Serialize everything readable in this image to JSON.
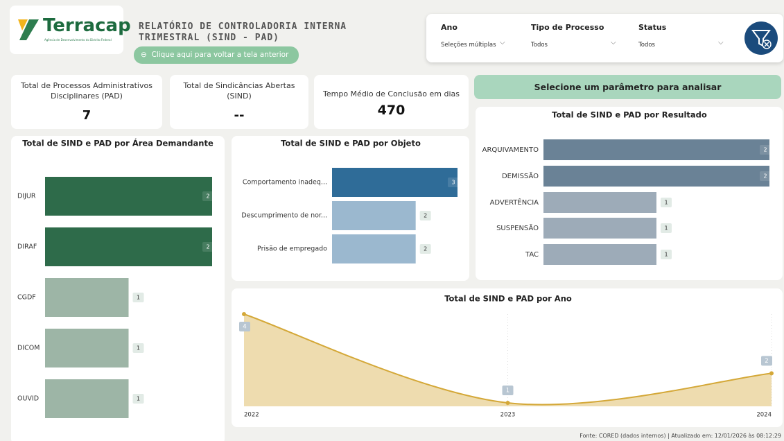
{
  "header": {
    "logo": "Terracap",
    "logo_subtitle": "Agência de Desenvolvimento do Distrito Federal",
    "title_lines": [
      "RELATÓRIO DE CONTROLADORIA INTERNA",
      "TRIMESTRAL (SIND - PAD)"
    ],
    "back_button": "Clique aqui para voltar a tela anterior"
  },
  "filters": [
    {
      "label": "Ano",
      "value": "Seleções múltiplas"
    },
    {
      "label": "Tipo de Processo",
      "value": "Todos"
    },
    {
      "label": "Status",
      "value": "Todos"
    }
  ],
  "kpis": [
    {
      "label": "Total de Processos Administrativos Disciplinares (PAD)",
      "value": 7
    },
    {
      "label": "Total de Sindicâncias Abertas (SIND)",
      "value": "--"
    },
    {
      "label": "Tempo Médio de Conclusão em dias",
      "value": 470
    }
  ],
  "param_button": "Selecione um parâmetro para analisar",
  "footer": "Fonte: CORED (dados internos) | Atualizado em: 12/01/2026 às 08:12:29",
  "chart_data": [
    {
      "type": "hbar",
      "title": "Total de SIND e PAD por Área Demandante",
      "categories": [
        "DIJUR",
        "DIRAF",
        "CGDF",
        "DICOM",
        "OUVID"
      ],
      "values": [
        2,
        2,
        1,
        1,
        1
      ],
      "colors": [
        "#2e6b4a",
        "#2e6b4a",
        "#9db5a6",
        "#9db5a6",
        "#9db5a6"
      ]
    },
    {
      "type": "hbar",
      "title": "Total de SIND e PAD por Objeto",
      "categories": [
        "Comportamento inadeq...",
        "Descumprimento de nor...",
        "Prisão de empregado"
      ],
      "values": [
        3,
        2,
        2
      ],
      "colors": [
        "#2f6c98",
        "#9bb8cf",
        "#9bb8cf"
      ]
    },
    {
      "type": "hbar",
      "title": "Total de SIND e PAD por Resultado",
      "categories": [
        "ARQUIVAMENTO",
        "DEMISSÃO",
        "ADVERTÊNCIA",
        "SUSPENSÃO",
        "TAC"
      ],
      "values": [
        2,
        2,
        1,
        1,
        1
      ],
      "colors": [
        "#6a8296",
        "#6a8296",
        "#9dabb8",
        "#9dabb8",
        "#9dabb8"
      ]
    },
    {
      "type": "area",
      "title": "Total de SIND e PAD por Ano",
      "x": [
        2022,
        2023,
        2024
      ],
      "values": [
        4,
        1,
        2
      ],
      "color": "#d4a838"
    }
  ]
}
